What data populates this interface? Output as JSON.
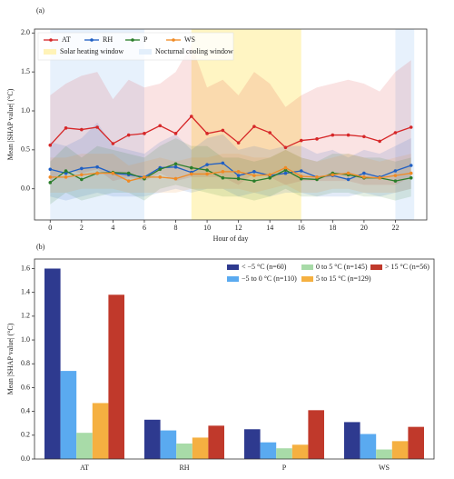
{
  "chart_data": [
    {
      "type": "line",
      "panel": "(a)",
      "xlabel": "Hour of day",
      "ylabel": "Mean |SHAP value| (°C)",
      "x": [
        0,
        1,
        2,
        3,
        4,
        5,
        6,
        7,
        8,
        9,
        10,
        11,
        12,
        13,
        14,
        15,
        16,
        17,
        18,
        19,
        20,
        21,
        22,
        23
      ],
      "xlim": [
        -1,
        24
      ],
      "xticks": [
        0,
        2,
        4,
        6,
        8,
        10,
        12,
        14,
        16,
        18,
        20,
        22
      ],
      "ylim": [
        -0.4,
        2.05
      ],
      "yticks": [
        {
          "value": 0,
          "label": "0.0"
        },
        {
          "value": 0.5,
          "label": "0.5"
        },
        {
          "value": 1,
          "label": "1.0"
        },
        {
          "value": 1.5,
          "label": "1.5"
        },
        {
          "value": 2,
          "label": "2.0"
        }
      ],
      "legend": "upper left",
      "windows": [
        {
          "name": "Solar heating window",
          "color": "#fff3b8",
          "ranges": [
            [
              9,
              16
            ]
          ]
        },
        {
          "name": "Nocturnal cooling window",
          "color": "#e3effb",
          "ranges": [
            [
              0,
              6
            ],
            [
              22,
              23.2
            ]
          ]
        }
      ],
      "series": [
        {
          "name": "AT",
          "color": "#d62728",
          "values": [
            0.56,
            0.78,
            0.76,
            0.79,
            0.58,
            0.69,
            0.71,
            0.81,
            0.71,
            0.93,
            0.71,
            0.75,
            0.59,
            0.8,
            0.72,
            0.53,
            0.62,
            0.64,
            0.69,
            0.69,
            0.67,
            0.61,
            0.72,
            0.79
          ],
          "lower": [
            0.1,
            0.25,
            0.2,
            0.25,
            0.1,
            0.15,
            0.1,
            0.2,
            0.1,
            0.15,
            0.15,
            0.15,
            0.05,
            0.2,
            0.15,
            0.05,
            0.1,
            0.1,
            0.1,
            0.1,
            0.05,
            0.05,
            0.05,
            0.15
          ],
          "upper": [
            1.2,
            1.35,
            1.45,
            1.5,
            1.15,
            1.4,
            1.3,
            1.35,
            1.5,
            1.85,
            1.3,
            1.4,
            1.2,
            1.5,
            1.35,
            1.05,
            1.2,
            1.3,
            1.35,
            1.4,
            1.35,
            1.25,
            1.5,
            1.65
          ]
        },
        {
          "name": "RH",
          "color": "#1f5fc4",
          "values": [
            0.25,
            0.2,
            0.26,
            0.28,
            0.2,
            0.18,
            0.15,
            0.27,
            0.28,
            0.21,
            0.31,
            0.33,
            0.17,
            0.22,
            0.17,
            0.2,
            0.23,
            0.15,
            0.17,
            0.12,
            0.2,
            0.15,
            0.23,
            0.3
          ],
          "lower": [
            -0.1,
            -0.15,
            -0.1,
            -0.05,
            -0.1,
            -0.1,
            -0.1,
            -0.05,
            0,
            -0.05,
            0,
            0,
            -0.1,
            -0.05,
            -0.1,
            -0.05,
            -0.05,
            -0.1,
            -0.1,
            -0.1,
            -0.05,
            -0.1,
            -0.05,
            0
          ],
          "upper": [
            0.6,
            0.55,
            0.65,
            0.85,
            0.55,
            0.5,
            0.45,
            0.6,
            0.7,
            0.5,
            0.65,
            0.7,
            0.5,
            0.55,
            0.5,
            0.55,
            0.55,
            0.45,
            0.5,
            0.4,
            0.5,
            0.45,
            0.55,
            0.65
          ]
        },
        {
          "name": "P",
          "color": "#2a7d2a",
          "values": [
            0.08,
            0.23,
            0.12,
            0.2,
            0.21,
            0.2,
            0.13,
            0.25,
            0.32,
            0.27,
            0.24,
            0.14,
            0.13,
            0.1,
            0.14,
            0.24,
            0.13,
            0.12,
            0.2,
            0.18,
            0.14,
            0.14,
            0.1,
            0.14
          ],
          "lower": [
            -0.2,
            -0.05,
            -0.15,
            -0.1,
            -0.05,
            -0.05,
            -0.15,
            0,
            0.05,
            0,
            -0.05,
            -0.1,
            -0.1,
            -0.15,
            -0.1,
            0,
            -0.1,
            -0.1,
            -0.05,
            -0.05,
            -0.1,
            -0.1,
            -0.15,
            -0.1
          ],
          "upper": [
            0.35,
            0.55,
            0.4,
            0.55,
            0.5,
            0.45,
            0.4,
            0.55,
            0.65,
            0.55,
            0.55,
            0.4,
            0.4,
            0.35,
            0.4,
            0.5,
            0.4,
            0.35,
            0.45,
            0.45,
            0.4,
            0.4,
            0.35,
            0.4
          ]
        },
        {
          "name": "WS",
          "color": "#f08a24",
          "values": [
            0.15,
            0.15,
            0.18,
            0.2,
            0.2,
            0.1,
            0.15,
            0.15,
            0.13,
            0.19,
            0.19,
            0.22,
            0.22,
            0.17,
            0.18,
            0.27,
            0.16,
            0.15,
            0.18,
            0.2,
            0.15,
            0.14,
            0.17,
            0.2
          ],
          "lower": [
            -0.05,
            -0.05,
            0,
            0,
            0,
            -0.05,
            -0.05,
            -0.05,
            -0.05,
            0,
            0,
            0,
            0,
            -0.05,
            0,
            0.05,
            -0.05,
            -0.05,
            0,
            0,
            -0.05,
            -0.05,
            -0.05,
            0
          ],
          "upper": [
            0.4,
            0.4,
            0.45,
            0.45,
            0.45,
            0.3,
            0.35,
            0.4,
            0.35,
            0.4,
            0.4,
            0.45,
            0.45,
            0.4,
            0.4,
            0.5,
            0.4,
            0.35,
            0.4,
            0.45,
            0.4,
            0.35,
            0.4,
            0.45
          ]
        }
      ]
    },
    {
      "type": "bar",
      "panel": "(b)",
      "ylabel": "Mean |SHAP value| (°C)",
      "categories": [
        "AT",
        "RH",
        "P",
        "WS"
      ],
      "ylim": [
        0,
        1.68
      ],
      "yticks": [
        {
          "value": 0,
          "label": "0.0"
        },
        {
          "value": 0.2,
          "label": "0.2"
        },
        {
          "value": 0.4,
          "label": "0.4"
        },
        {
          "value": 0.6,
          "label": "0.6"
        },
        {
          "value": 0.8,
          "label": "0.8"
        },
        {
          "value": 1,
          "label": "1.0"
        },
        {
          "value": 1.2,
          "label": "1.2"
        },
        {
          "value": 1.4,
          "label": "1.4"
        },
        {
          "value": 1.6,
          "label": "1.6"
        }
      ],
      "legend": "upper right",
      "series": [
        {
          "name": "< −5 °C (n=60)",
          "color": "#2e3a8f",
          "values": [
            1.6,
            0.33,
            0.25,
            0.31
          ]
        },
        {
          "name": "−5 to 0 °C (n=110)",
          "color": "#5aaaf0",
          "values": [
            0.74,
            0.24,
            0.14,
            0.21
          ]
        },
        {
          "name": "0 to 5 °C (n=145)",
          "color": "#a8dba8",
          "values": [
            0.22,
            0.13,
            0.09,
            0.08
          ]
        },
        {
          "name": "5 to 15 °C (n=129)",
          "color": "#f5b041",
          "values": [
            0.47,
            0.18,
            0.12,
            0.15
          ]
        },
        {
          "name": "> 15 °C (n=56)",
          "color": "#c0392b",
          "values": [
            1.38,
            0.28,
            0.41,
            0.27
          ]
        }
      ]
    }
  ]
}
